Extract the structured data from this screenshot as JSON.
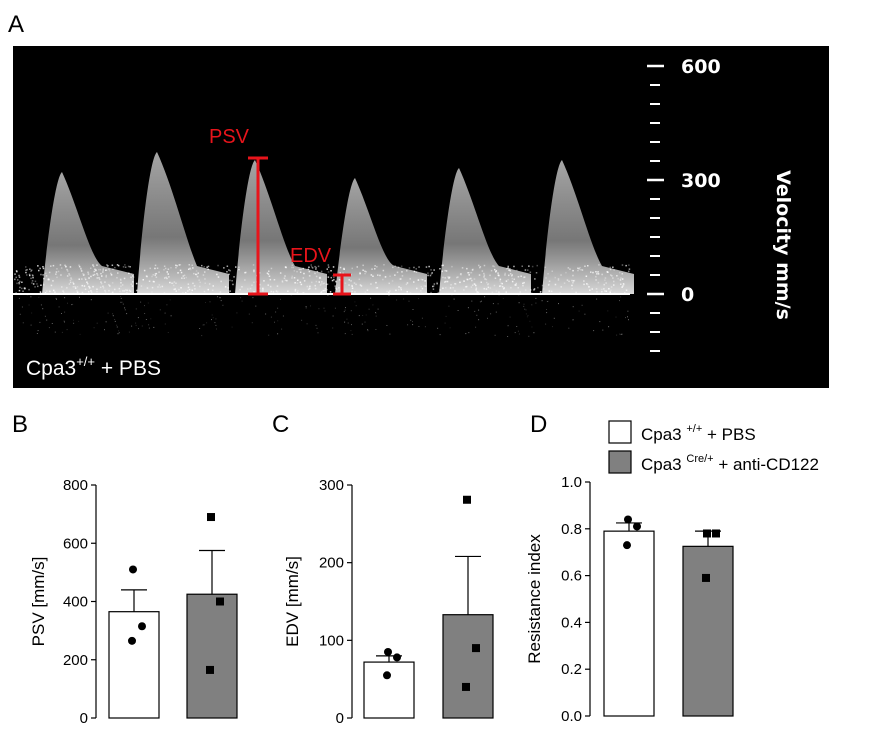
{
  "panel_letters": {
    "a": "A",
    "b": "B",
    "c": "C",
    "d": "D"
  },
  "ultrasound": {
    "psv_label": "PSV",
    "edv_label": "EDV",
    "velocity_axis_label": "Velocity mm/s",
    "velocity_ticks": [
      "600",
      "300",
      "0"
    ],
    "group": {
      "base": "Cpa3",
      "sup": "+/+",
      "rest": " + PBS"
    },
    "colors": {
      "background": "#000000",
      "annotation": "#e8141b",
      "trace": "#ffffff"
    }
  },
  "legend": {
    "items": [
      {
        "base": "Cpa3 ",
        "sup": "+/+",
        "rest": "  + PBS",
        "color": "#ffffff"
      },
      {
        "base": "Cpa3 ",
        "sup": "Cre/+",
        "rest": " + anti-CD122",
        "color": "#808080"
      }
    ]
  },
  "chart_data": [
    {
      "type": "bar",
      "panel": "B",
      "ylabel": "PSV [mm/s]",
      "ylim": [
        0,
        800
      ],
      "yticks": [
        "0",
        "200",
        "400",
        "600",
        "800"
      ],
      "categories": [
        "Cpa3 +/+ + PBS",
        "Cpa3 Cre/+ + anti-CD122"
      ],
      "values": [
        365,
        425
      ],
      "errors": [
        75,
        150
      ],
      "points": [
        [
          510,
          315,
          265
        ],
        [
          690,
          400,
          165
        ]
      ],
      "colors": [
        "#ffffff",
        "#808080"
      ]
    },
    {
      "type": "bar",
      "panel": "C",
      "ylabel": "EDV [mm/s]",
      "ylim": [
        0,
        300
      ],
      "yticks": [
        "0",
        "100",
        "200",
        "300"
      ],
      "categories": [
        "Cpa3 +/+ + PBS",
        "Cpa3 Cre/+ + anti-CD122"
      ],
      "values": [
        72,
        133
      ],
      "errors": [
        8,
        75
      ],
      "points": [
        [
          85,
          78,
          55
        ],
        [
          281,
          90,
          40
        ]
      ],
      "colors": [
        "#ffffff",
        "#808080"
      ]
    },
    {
      "type": "bar",
      "panel": "D",
      "ylabel": "Resistance index",
      "ylim": [
        0,
        1.0
      ],
      "yticks": [
        "0.0",
        "0.2",
        "0.4",
        "0.6",
        "0.8",
        "1.0"
      ],
      "categories": [
        "Cpa3 +/+ + PBS",
        "Cpa3 Cre/+ + anti-CD122"
      ],
      "values": [
        0.79,
        0.725
      ],
      "errors": [
        0.035,
        0.065
      ],
      "points": [
        [
          0.84,
          0.81,
          0.73
        ],
        [
          0.78,
          0.78,
          0.59
        ]
      ],
      "colors": [
        "#ffffff",
        "#808080"
      ]
    }
  ]
}
